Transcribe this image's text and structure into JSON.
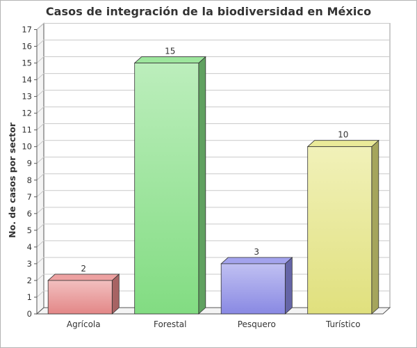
{
  "chart_data": {
    "type": "bar",
    "title": "Casos de integración de la biodiversidad en México",
    "xlabel": "",
    "ylabel": "No. de casos por sector",
    "categories": [
      "Agrícola",
      "Forestal",
      "Pesquero",
      "Turístico"
    ],
    "values": [
      2,
      15,
      3,
      10
    ],
    "data_labels": [
      "2",
      "15",
      "3",
      "10"
    ],
    "ylim": [
      0,
      17
    ],
    "yticks": [
      "0",
      "1",
      "2",
      "3",
      "4",
      "5",
      "6",
      "7",
      "8",
      "9",
      "10",
      "11",
      "12",
      "13",
      "14",
      "15",
      "16",
      "17"
    ],
    "grid": true,
    "legend": "none",
    "style": "3d",
    "colors": [
      "#e88a8a",
      "#85e085",
      "#8c8ce8",
      "#e5e580"
    ]
  }
}
